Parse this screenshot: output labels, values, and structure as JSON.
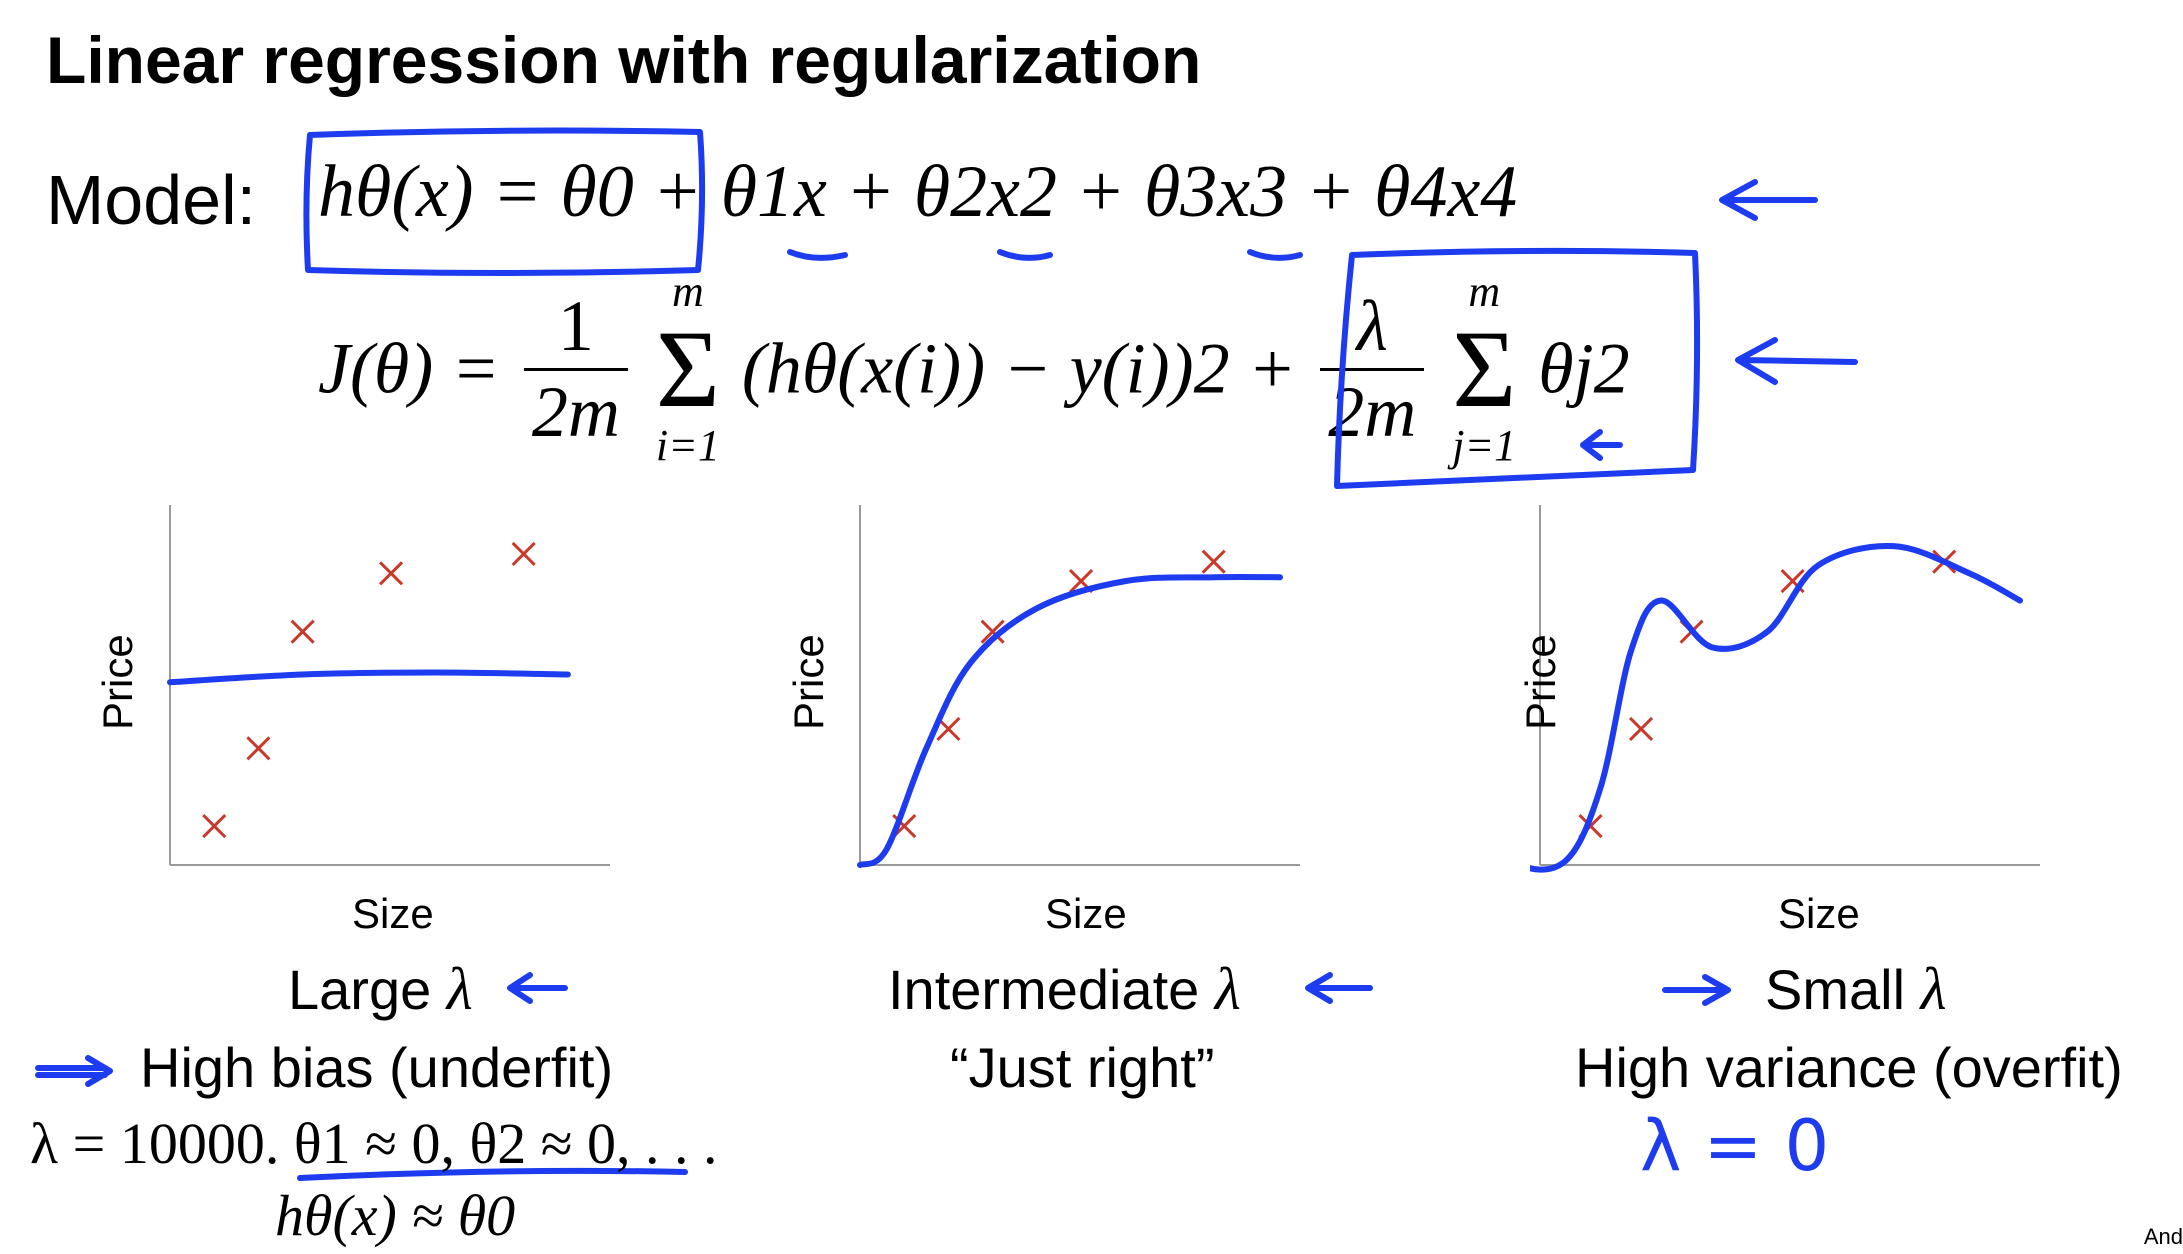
{
  "title": "Linear regression with regularization",
  "model_label": "Model:",
  "model_equation": {
    "hypothesis": "hθ(x) = θ0",
    "rest": "+ θ1x + θ2x2 + θ3x3 + θ4x4"
  },
  "cost_function": {
    "lhs": "J(θ) =",
    "frac1_num": "1",
    "frac1_den": "2m",
    "sum1_upper": "m",
    "sum1_lower": "i=1",
    "term1": "(hθ(x(i)) − y(i))2 +",
    "frac2_num": "λ",
    "frac2_den": "2m",
    "sum2_upper": "m",
    "sum2_lower": "j=1",
    "term2": "θj2"
  },
  "annotation_color": "#1d3bef",
  "marker_color": "#c8392b",
  "axis_color": "#9a9a9a",
  "chart_data": [
    {
      "type": "scatter",
      "xlabel": "Size",
      "ylabel": "Price",
      "points": [
        {
          "x": 1,
          "y": 1
        },
        {
          "x": 2,
          "y": 3
        },
        {
          "x": 3,
          "y": 6
        },
        {
          "x": 5,
          "y": 7.5
        },
        {
          "x": 8,
          "y": 8
        }
      ],
      "fit_line": [
        {
          "x": 0,
          "y": 4.7
        },
        {
          "x": 3,
          "y": 4.9
        },
        {
          "x": 6,
          "y": 4.95
        },
        {
          "x": 9,
          "y": 4.9
        }
      ],
      "xlim": [
        0,
        9.5
      ],
      "ylim": [
        0,
        9
      ]
    },
    {
      "type": "scatter",
      "xlabel": "Size",
      "ylabel": "Price",
      "points": [
        {
          "x": 1,
          "y": 1
        },
        {
          "x": 2,
          "y": 3.5
        },
        {
          "x": 3,
          "y": 6
        },
        {
          "x": 5,
          "y": 7.3
        },
        {
          "x": 8,
          "y": 7.8
        }
      ],
      "fit_line": [
        {
          "x": 0,
          "y": 0
        },
        {
          "x": 0.6,
          "y": 0.4
        },
        {
          "x": 1.5,
          "y": 3
        },
        {
          "x": 2.5,
          "y": 5.2
        },
        {
          "x": 4,
          "y": 6.6
        },
        {
          "x": 6,
          "y": 7.3
        },
        {
          "x": 8,
          "y": 7.4
        },
        {
          "x": 9.5,
          "y": 7.4
        }
      ],
      "xlim": [
        0,
        9.5
      ],
      "ylim": [
        0,
        9
      ]
    },
    {
      "type": "scatter",
      "xlabel": "Size",
      "ylabel": "Price",
      "points": [
        {
          "x": 1,
          "y": 1
        },
        {
          "x": 2,
          "y": 3.5
        },
        {
          "x": 3,
          "y": 6
        },
        {
          "x": 5,
          "y": 7.3
        },
        {
          "x": 8,
          "y": 7.8
        }
      ],
      "fit_line": [
        {
          "x": -1.2,
          "y": 1.7
        },
        {
          "x": -0.5,
          "y": 0.1
        },
        {
          "x": 0.5,
          "y": 0.1
        },
        {
          "x": 1.2,
          "y": 2
        },
        {
          "x": 1.8,
          "y": 5.5
        },
        {
          "x": 2.4,
          "y": 6.8
        },
        {
          "x": 3.4,
          "y": 5.6
        },
        {
          "x": 4.5,
          "y": 6
        },
        {
          "x": 5.5,
          "y": 7.7
        },
        {
          "x": 7,
          "y": 8.2
        },
        {
          "x": 8.5,
          "y": 7.5
        },
        {
          "x": 9.5,
          "y": 6.8
        }
      ],
      "xlim": [
        0,
        9.5
      ],
      "ylim": [
        0,
        9
      ]
    }
  ],
  "captions": [
    {
      "main": "Large",
      "lambda": "λ",
      "line2": "High bias (underfit)"
    },
    {
      "main": "Intermediate",
      "lambda": "λ",
      "line2": "“Just right”"
    },
    {
      "main": "Small",
      "lambda": "λ",
      "line2": "High variance (overfit)"
    }
  ],
  "note_line1": "λ = 10000.  θ1 ≈ 0, θ2 ≈ 0, . . .",
  "note_line2": "hθ(x) ≈ θ0",
  "handwritten_lambda_zero": "λ = 0",
  "credit": "And"
}
